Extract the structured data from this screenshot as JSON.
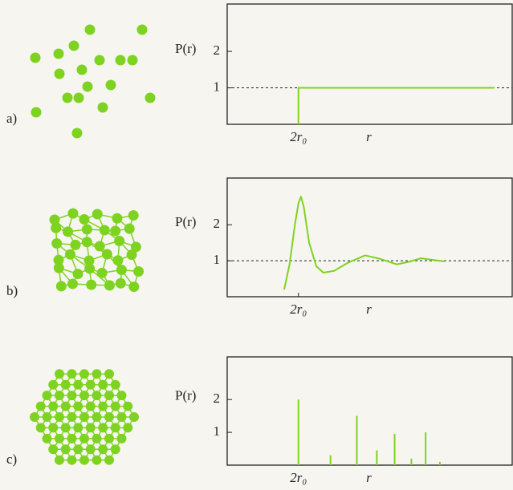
{
  "chart_data": [
    {
      "type": "line",
      "label": "a)",
      "ylabel": "P(r)",
      "xlabel": "r",
      "xlim": [
        0,
        8
      ],
      "xticks": [
        {
          "value": 2,
          "label": "2r₀"
        }
      ],
      "ylim": [
        0,
        3.3
      ],
      "yticks": [
        1,
        2
      ],
      "reference_line": 1,
      "series": [
        {
          "color": "#7ed321",
          "x": [
            2,
            2,
            7.5
          ],
          "values": [
            0,
            1,
            1
          ]
        }
      ]
    },
    {
      "type": "line",
      "label": "b)",
      "ylabel": "P(r)",
      "xlabel": "r",
      "xlim": [
        0,
        8
      ],
      "xticks": [
        {
          "value": 2,
          "label": "2r₀"
        }
      ],
      "ylim": [
        0,
        3.3
      ],
      "yticks": [
        1,
        2
      ],
      "reference_line": 1,
      "series": [
        {
          "color": "#7ed321",
          "x": [
            1.6,
            1.75,
            1.9,
            2.0,
            2.07,
            2.15,
            2.3,
            2.5,
            2.7,
            3.0,
            3.4,
            3.87,
            4.3,
            4.76,
            5.1,
            5.44,
            5.8,
            6.1
          ],
          "values": [
            0.2,
            0.9,
            2.0,
            2.6,
            2.78,
            2.5,
            1.5,
            0.85,
            0.67,
            0.72,
            0.95,
            1.15,
            1.05,
            0.9,
            0.97,
            1.07,
            1.02,
            0.98
          ]
        }
      ]
    },
    {
      "type": "stem",
      "label": "c)",
      "ylabel": "P(r)",
      "xlabel": "r",
      "xlim": [
        0,
        8
      ],
      "xticks": [
        {
          "value": 2,
          "label": "2r₀"
        }
      ],
      "ylim": [
        0,
        3.3
      ],
      "yticks": [
        1,
        2
      ],
      "series": [
        {
          "color": "#7ed321",
          "x": [
            2,
            2.9,
            3.64,
            4.2,
            4.7,
            5.17,
            5.57,
            5.97
          ],
          "values": [
            2,
            0.3,
            1.5,
            0.45,
            0.95,
            0.2,
            1.0,
            0.1
          ]
        }
      ]
    }
  ]
}
